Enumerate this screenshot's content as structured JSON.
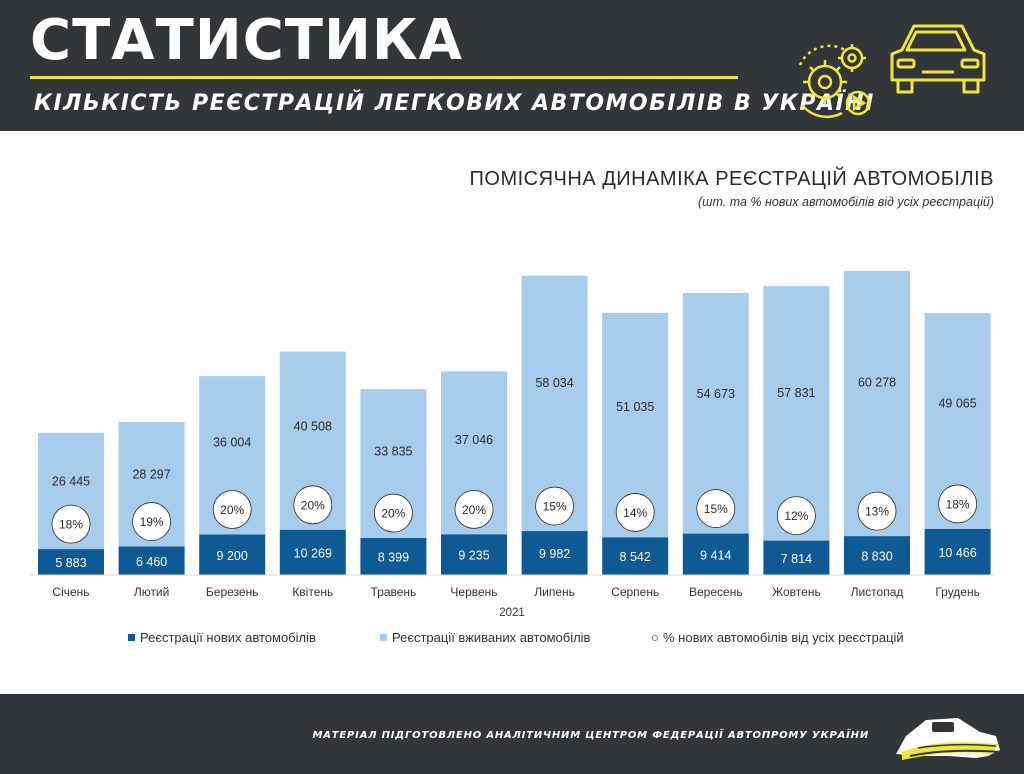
{
  "header": {
    "title": "СТАТИСТИКА",
    "subtitle": "КІЛЬКІСТЬ РЕЄСТРАЦІЙ ЛЕГКОВИХ АВТОМОБІЛІВ В УКРАЇНІ",
    "accent_color": "#f0e63a",
    "icons": [
      "gear-icon",
      "play-icon",
      "car-icon"
    ]
  },
  "footer": {
    "text": "МАТЕРІАЛ ПІДГОТОВЛЕНО АНАЛІТИЧНИМ ЦЕНТРОМ ФЕДЕРАЦІЇ АВТОПРОМУ УКРАЇНИ",
    "logo": "car-logo-icon"
  },
  "chart_data": {
    "type": "bar",
    "stacked": true,
    "title": "ПОМІСЯЧНА ДИНАМІКА РЕЄСТРАЦІЙ АВТОМОБІЛІВ",
    "subtitle": "(шт. та % нових автомобілів від усіх реєстрацій)",
    "xlabel": "2021",
    "categories": [
      "Січень",
      "Лютий",
      "Березень",
      "Квітень",
      "Травень",
      "Червень",
      "Липень",
      "Серпень",
      "Вересень",
      "Жовтень",
      "Листопад",
      "Грудень"
    ],
    "series": [
      {
        "name": "Реєстрації нових автомобілів",
        "color": "#0d5a94",
        "values": [
          5883,
          6460,
          9200,
          10269,
          8399,
          9235,
          9982,
          8542,
          9414,
          7814,
          8830,
          10466
        ],
        "labels": [
          "5 883",
          "6 460",
          "9 200",
          "10 269",
          "8 399",
          "9 235",
          "9 982",
          "8 542",
          "9 414",
          "7 814",
          "8 830",
          "10 466"
        ]
      },
      {
        "name": "Реєстрації вживаних автомобілів",
        "color": "#a8ccec",
        "values": [
          26445,
          28297,
          36004,
          40508,
          33835,
          37046,
          58034,
          51035,
          54673,
          57831,
          60278,
          49065
        ],
        "labels": [
          "26 445",
          "28 297",
          "36 004",
          "40 508",
          "33 835",
          "37 046",
          "58 034",
          "51 035",
          "54 673",
          "57 831",
          "60 278",
          "49 065"
        ]
      },
      {
        "name": "% нових автомобілів від усіх реєстрацій",
        "color": "#4a8bc9",
        "values": [
          18,
          19,
          20,
          20,
          20,
          20,
          15,
          14,
          15,
          12,
          13,
          18
        ],
        "labels": [
          "18%",
          "19%",
          "20%",
          "20%",
          "20%",
          "20%",
          "15%",
          "14%",
          "15%",
          "12%",
          "13%",
          "18%"
        ]
      }
    ],
    "legend_position": "bottom",
    "grid": false
  }
}
